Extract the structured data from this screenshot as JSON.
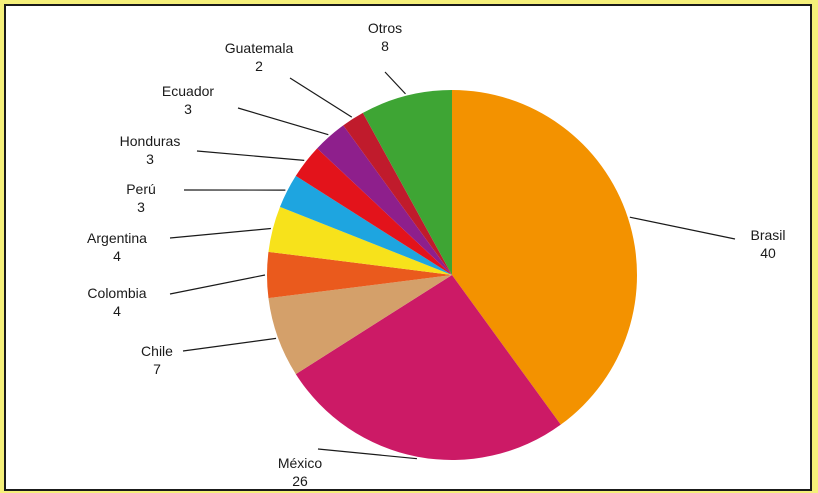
{
  "chart_data": {
    "type": "pie",
    "title": "",
    "start_angle_deg": 0,
    "direction": "clockwise",
    "slices": [
      {
        "label": "Brasil",
        "value": 40,
        "color": "#f39200"
      },
      {
        "label": "México",
        "value": 26,
        "color": "#cc1a66"
      },
      {
        "label": "Chile",
        "value": 7,
        "color": "#d4a06a"
      },
      {
        "label": "Colombia",
        "value": 4,
        "color": "#ea5a1d"
      },
      {
        "label": "Argentina",
        "value": 4,
        "color": "#f7e21b"
      },
      {
        "label": "Perú",
        "value": 3,
        "color": "#1ea5e0"
      },
      {
        "label": "Honduras",
        "value": 3,
        "color": "#e3131b"
      },
      {
        "label": "Ecuador",
        "value": 3,
        "color": "#8e1f8c"
      },
      {
        "label": "Guatemala",
        "value": 2,
        "color": "#c01b2c"
      },
      {
        "label": "Otros",
        "value": 8,
        "color": "#3ea534"
      }
    ]
  }
}
